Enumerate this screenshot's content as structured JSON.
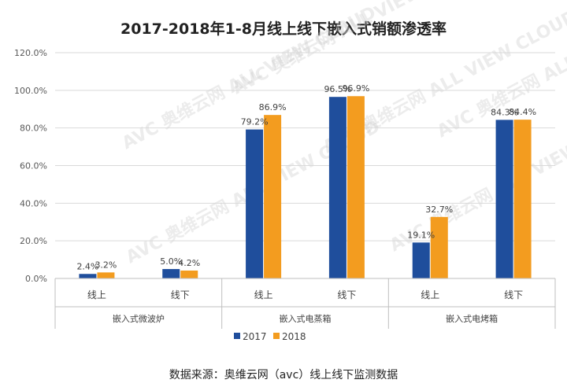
{
  "chart_data": {
    "type": "bar",
    "title": "2017-2018年1-8月线上线下嵌入式销额渗透率",
    "groups": [
      "嵌入式微波炉",
      "嵌入式电蒸箱",
      "嵌入式电烤箱"
    ],
    "categories": [
      "线上",
      "线下",
      "线上",
      "线下",
      "线上",
      "线下"
    ],
    "series": [
      {
        "name": "2017",
        "color": "#1f4e9c",
        "values": [
          2.4,
          5.0,
          79.2,
          96.5,
          19.1,
          84.3
        ],
        "labels": [
          "2.4%",
          "5.0%",
          "79.2%",
          "96.5%",
          "19.1%",
          "84.3%"
        ]
      },
      {
        "name": "2018",
        "color": "#f39c1f",
        "values": [
          3.2,
          4.2,
          86.9,
          96.9,
          32.7,
          84.4
        ],
        "labels": [
          "3.2%",
          "4.2%",
          "86.9%",
          "96.9%",
          "32.7%",
          "84.4%"
        ]
      }
    ],
    "yticks": [
      "0.0%",
      "20.0%",
      "40.0%",
      "60.0%",
      "80.0%",
      "100.0%",
      "120.0%"
    ],
    "ylim": [
      0,
      120
    ],
    "grid": true,
    "legend": "bottom"
  },
  "watermark": "AVC 奥维云网 ALL VIEW CLOUD",
  "source_note": "数据来源：奥维云网（avc）线上线下监测数据"
}
